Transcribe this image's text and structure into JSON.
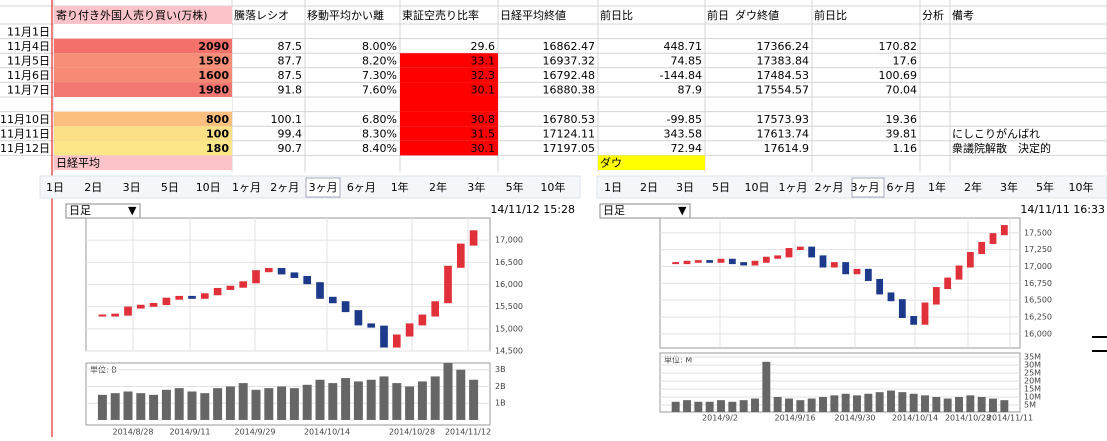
{
  "sheet": {
    "header": [
      "寄り付き外国人売り買い(万株)",
      "騰落レシオ",
      "移動平均かい離",
      "東証空売り比率",
      "日経平均終値",
      "前日比",
      "前日",
      "ダウ終値",
      "前日比",
      "分析",
      "備考"
    ],
    "rows": [
      {
        "label": "11月1日"
      },
      {
        "label": "11月4日",
        "cells": [
          "2090",
          "87.5",
          "8.00%",
          "29.6",
          "16862.47",
          "448.71",
          "17366.24",
          "170.82"
        ]
      },
      {
        "label": "11月5日",
        "cells": [
          "1590",
          "87.7",
          "8.20%",
          "33.1",
          "16937.32",
          "74.85",
          "17383.84",
          "17.6"
        ]
      },
      {
        "label": "11月6日",
        "cells": [
          "1600",
          "87.5",
          "7.30%",
          "32.3",
          "16792.48",
          "-144.84",
          "17484.53",
          "100.69"
        ]
      },
      {
        "label": "11月7日",
        "cells": [
          "1980",
          "91.8",
          "7.60%",
          "30.1",
          "16880.38",
          "87.9",
          "17554.57",
          "70.04"
        ]
      },
      {},
      {
        "label": "11月10日",
        "cells": [
          "800",
          "100.1",
          "6.80%",
          "30.8",
          "16780.53",
          "-99.85",
          "17573.93",
          "19.36"
        ]
      },
      {
        "label": "11月11日",
        "cells": [
          "100",
          "99.4",
          "8.30%",
          "31.5",
          "17124.11",
          "343.58",
          "17613.74",
          "39.81"
        ],
        "note": "にしこりがんばれ"
      },
      {
        "label": "11月12日",
        "cells": [
          "180",
          "90.7",
          "8.40%",
          "30.1",
          "17197.05",
          "72.94",
          "17614.9",
          "1.16"
        ],
        "note": "衆議院解散　決定的"
      }
    ],
    "nikkei_label": "日経平均",
    "dow_label": "ダウ"
  },
  "charts": [
    {
      "tabs": [
        "1日",
        "2日",
        "3日",
        "5日",
        "10日",
        "1ヶ月",
        "2ヶ月",
        "3ヶ月",
        "6ヶ月",
        "1年",
        "2年",
        "3年",
        "5年",
        "10年"
      ],
      "period": "日足",
      "timestamp": "14/11/12 15:28",
      "unit": "単位: B",
      "dates": [
        "2014/8/28",
        "2014/9/11",
        "2014/9/29",
        "2014/10/14",
        "2014/10/28",
        "2014/11/12"
      ],
      "ylim": [
        14500,
        17500
      ],
      "yticks": [
        {
          "value": 17000,
          "label": "17,000"
        },
        {
          "value": 16500,
          "label": "16,500"
        },
        {
          "value": 16000,
          "label": "16,000"
        },
        {
          "value": 15500,
          "label": "15,500"
        },
        {
          "value": 15000,
          "label": "15,000"
        },
        {
          "value": 14500,
          "label": "14,500"
        }
      ],
      "closes": [
        15300,
        15320,
        15480,
        15520,
        15560,
        15680,
        15720,
        15700,
        15780,
        15900,
        15950,
        16050,
        16300,
        16350,
        16250,
        16170,
        16030,
        15700,
        15600,
        15400,
        15100,
        15050,
        14600,
        14850,
        15100,
        15300,
        15600,
        16400,
        16900,
        17200
      ],
      "vlim": [
        -0.3,
        3.4
      ],
      "vticks": [
        {
          "value": 3,
          "label": "3B"
        },
        {
          "value": 2,
          "label": "2B"
        },
        {
          "value": 1,
          "label": "1B"
        }
      ],
      "volumes": [
        1.5,
        1.6,
        1.7,
        1.6,
        1.5,
        1.8,
        1.9,
        1.7,
        1.6,
        1.9,
        2.0,
        2.2,
        1.8,
        1.9,
        2.0,
        1.9,
        2.1,
        2.4,
        2.2,
        2.5,
        2.3,
        2.4,
        2.6,
        2.2,
        2.0,
        2.3,
        2.6,
        3.4,
        3.0,
        2.4
      ]
    },
    {
      "tabs": [
        "1日",
        "2日",
        "3日",
        "5日",
        "10日",
        "1ヶ月",
        "2ヶ月",
        "3ヶ月",
        "6ヶ月",
        "1年",
        "2年",
        "3年",
        "5年",
        "10年"
      ],
      "period": "日足",
      "timestamp": "14/11/11 16:33",
      "unit": "単位: M",
      "dates": [
        "2014/9/2",
        "2014/9/16",
        "2014/9/30",
        "2014/10/14",
        "2014/10/28",
        "2014/11/11"
      ],
      "ylim": [
        15790,
        17720
      ],
      "yticks": [
        {
          "value": 17500,
          "label": "17,500"
        },
        {
          "value": 17250,
          "label": "17,250"
        },
        {
          "value": 17000,
          "label": "17,000"
        },
        {
          "value": 16750,
          "label": "16,750"
        },
        {
          "value": 16500,
          "label": "16,500"
        },
        {
          "value": 16250,
          "label": "16,250"
        },
        {
          "value": 16000,
          "label": "16,000"
        }
      ],
      "closes": [
        17050,
        17070,
        17080,
        17070,
        17100,
        17050,
        17030,
        17070,
        17130,
        17150,
        17260,
        17280,
        17150,
        17000,
        17050,
        16900,
        16950,
        16800,
        16600,
        16500,
        16250,
        16150,
        16450,
        16680,
        16820,
        17000,
        17200,
        17350,
        17480,
        17600
      ],
      "vlim": [
        0.6,
        37.5
      ],
      "vticks": [
        {
          "value": 35,
          "label": "35M"
        },
        {
          "value": 30,
          "label": "30M"
        },
        {
          "value": 25,
          "label": "25M"
        },
        {
          "value": 20,
          "label": "20M"
        },
        {
          "value": 15,
          "label": "15M"
        },
        {
          "value": 10,
          "label": "10M"
        },
        {
          "value": 5,
          "label": "5M"
        }
      ],
      "volumes": [
        7,
        8,
        7,
        7,
        8,
        7,
        8,
        9,
        32,
        10,
        9,
        8,
        9,
        10,
        11,
        12,
        11,
        12,
        13,
        14,
        13,
        12,
        11,
        10,
        9,
        10,
        11,
        10,
        9,
        8
      ]
    }
  ]
}
